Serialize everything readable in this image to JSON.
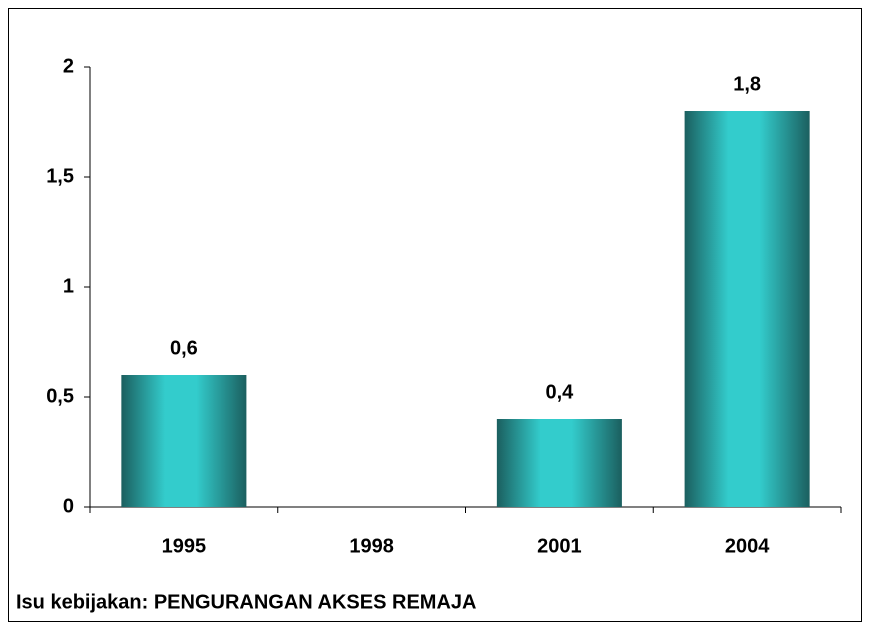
{
  "chart_data": {
    "type": "bar",
    "categories": [
      "1995",
      "1998",
      "2001",
      "2004"
    ],
    "values": [
      0.6,
      null,
      0.4,
      1.8
    ],
    "value_labels": [
      "0,6",
      null,
      "0,4",
      "1,8"
    ],
    "color": "#33cccc",
    "ylim": [
      0,
      2
    ],
    "yticks": [
      0,
      {
        "value": 0.5,
        "label": "0,5"
      },
      1,
      {
        "value": 1.5,
        "label": "1,5"
      },
      2
    ],
    "caption": "Isu kebijakan: PENGURANGAN AKSES REMAJA"
  }
}
